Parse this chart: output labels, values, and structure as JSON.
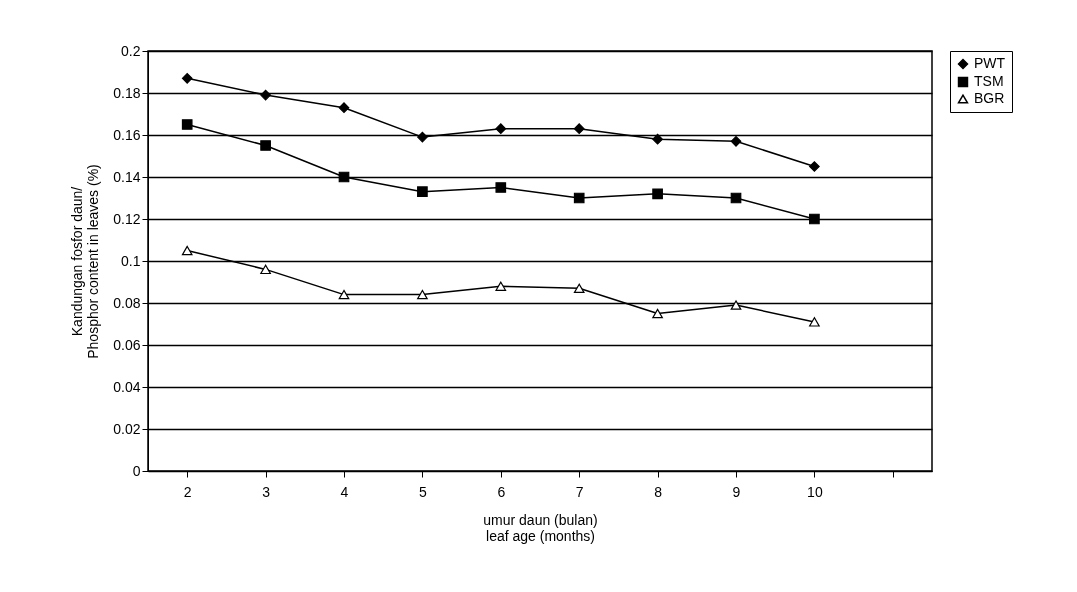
{
  "chart_data": {
    "type": "line",
    "xlabel": "umur daun (bulan)\nleaf age (months)",
    "ylabel": "Kandungan fosfor daun/\nPhosphor content in leaves (%)",
    "categories": [
      "2",
      "3",
      "4",
      "5",
      "6",
      "7",
      "8",
      "9",
      "10",
      null
    ],
    "series": [
      {
        "name": "PWT",
        "color": "#000000",
        "marker": "diamond",
        "values": [
          0.187,
          0.179,
          0.173,
          0.159,
          0.163,
          0.163,
          0.158,
          0.157,
          0.145,
          null
        ]
      },
      {
        "name": "TSM",
        "color": "#000000",
        "marker": "square",
        "values": [
          0.165,
          0.155,
          0.14,
          0.133,
          0.135,
          0.13,
          0.132,
          0.13,
          0.12,
          null
        ]
      },
      {
        "name": "BGR",
        "color": "#000000",
        "marker": "triangle",
        "values": [
          0.105,
          0.096,
          0.084,
          0.084,
          0.088,
          0.087,
          0.075,
          0.079,
          0.071,
          null
        ]
      }
    ],
    "ylim": [
      0,
      0.2
    ],
    "yticks": [
      0,
      0.02,
      0.04,
      0.06,
      0.08,
      0.1,
      0.12,
      0.14,
      0.16,
      0.18,
      0.2
    ],
    "grid": "y",
    "legend": "right",
    "line_style": "solid"
  }
}
